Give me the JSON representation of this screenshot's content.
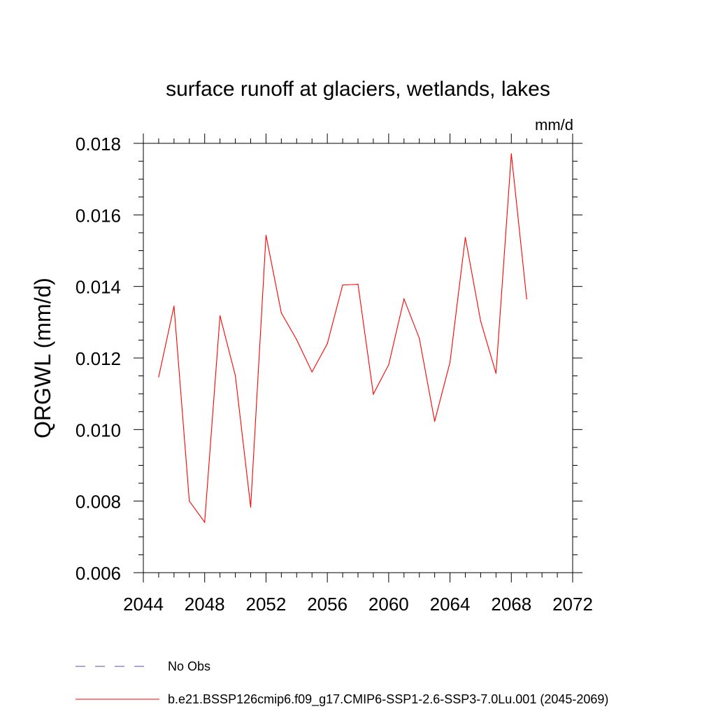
{
  "chart_data": {
    "type": "line",
    "title": "surface runoff at glaciers, wetlands, lakes",
    "units_label": "mm/d",
    "ylabel": "QRGWL  (mm/d)",
    "xlabel": "",
    "xlim": [
      2044,
      2072
    ],
    "ylim": [
      0.006,
      0.018
    ],
    "x_ticks": [
      "2044",
      "2048",
      "2052",
      "2056",
      "2060",
      "2064",
      "2068",
      "2072"
    ],
    "y_ticks": [
      "0.006",
      "0.008",
      "0.010",
      "0.012",
      "0.014",
      "0.016",
      "0.018"
    ],
    "grid": false,
    "legend_position": "bottom-left",
    "series": [
      {
        "name": "b.e21.BSSP126cmip6.f09_g17.CMIP6-SSP1-2.6-SSP3-7.0Lu.001 (2045-2069)",
        "color": "#ff0000",
        "line_style": "solid",
        "x": [
          2045,
          2046,
          2047,
          2048,
          2049,
          2050,
          2051,
          2052,
          2053,
          2054,
          2055,
          2056,
          2057,
          2058,
          2059,
          2060,
          2061,
          2062,
          2063,
          2064,
          2065,
          2066,
          2067,
          2068,
          2069
        ],
        "y": [
          0.01147,
          0.01345,
          0.008,
          0.00741,
          0.01318,
          0.01151,
          0.00783,
          0.01543,
          0.01326,
          0.01251,
          0.01161,
          0.0124,
          0.01404,
          0.01406,
          0.01099,
          0.01181,
          0.01365,
          0.01255,
          0.01023,
          0.01188,
          0.01537,
          0.01303,
          0.01157,
          0.01771,
          0.01365
        ]
      }
    ],
    "legend": [
      {
        "label": "No Obs",
        "color": "#5a4fa8",
        "line_style": "dashed"
      },
      {
        "label": "b.e21.BSSP126cmip6.f09_g17.CMIP6-SSP1-2.6-SSP3-7.0Lu.001 (2045-2069)",
        "color": "#ff0000",
        "line_style": "solid"
      }
    ]
  }
}
